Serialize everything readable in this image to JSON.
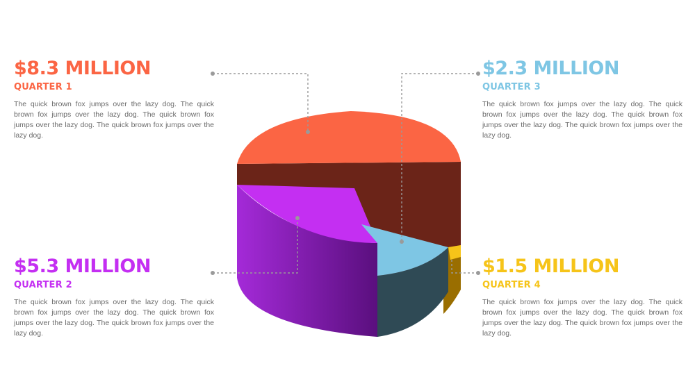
{
  "chart_data": {
    "type": "pie",
    "style": "3d",
    "series": [
      {
        "label": "QUARTER 1",
        "amount": "$8.3 MILLION",
        "value": 8.3,
        "color": "#FB6544",
        "side_color": "#6B2418",
        "description": "The quick brown fox jumps over the lazy dog. The quick brown fox jumps over the lazy dog. The quick brown fox jumps over the lazy dog. The quick brown fox jumps over the lazy dog."
      },
      {
        "label": "QUARTER 2",
        "amount": "$5.3 MILLION",
        "value": 5.3,
        "color": "#C42FF2",
        "side_color": "#7A18A8",
        "description": "The quick brown fox jumps over the lazy dog. The quick brown fox jumps over the lazy dog. The quick brown fox jumps over the lazy dog. The quick brown fox jumps over the lazy dog."
      },
      {
        "label": "QUARTER 3",
        "amount": "$2.3 MILLION",
        "value": 2.3,
        "color": "#7EC6E4",
        "side_color": "#2F4A55",
        "description": "The quick brown fox jumps over the lazy dog. The quick brown fox jumps over the lazy dog. The quick brown fox jumps over the lazy dog. The quick brown fox jumps over the lazy dog."
      },
      {
        "label": "QUARTER 4",
        "amount": "$1.5 MILLION",
        "value": 1.5,
        "color": "#F6C419",
        "side_color": "#9A6E00",
        "description": "The quick brown fox jumps over the lazy dog. The quick brown fox jumps over the lazy dog. The quick brown fox jumps over the lazy dog. The quick brown fox jumps over the lazy dog."
      }
    ]
  }
}
